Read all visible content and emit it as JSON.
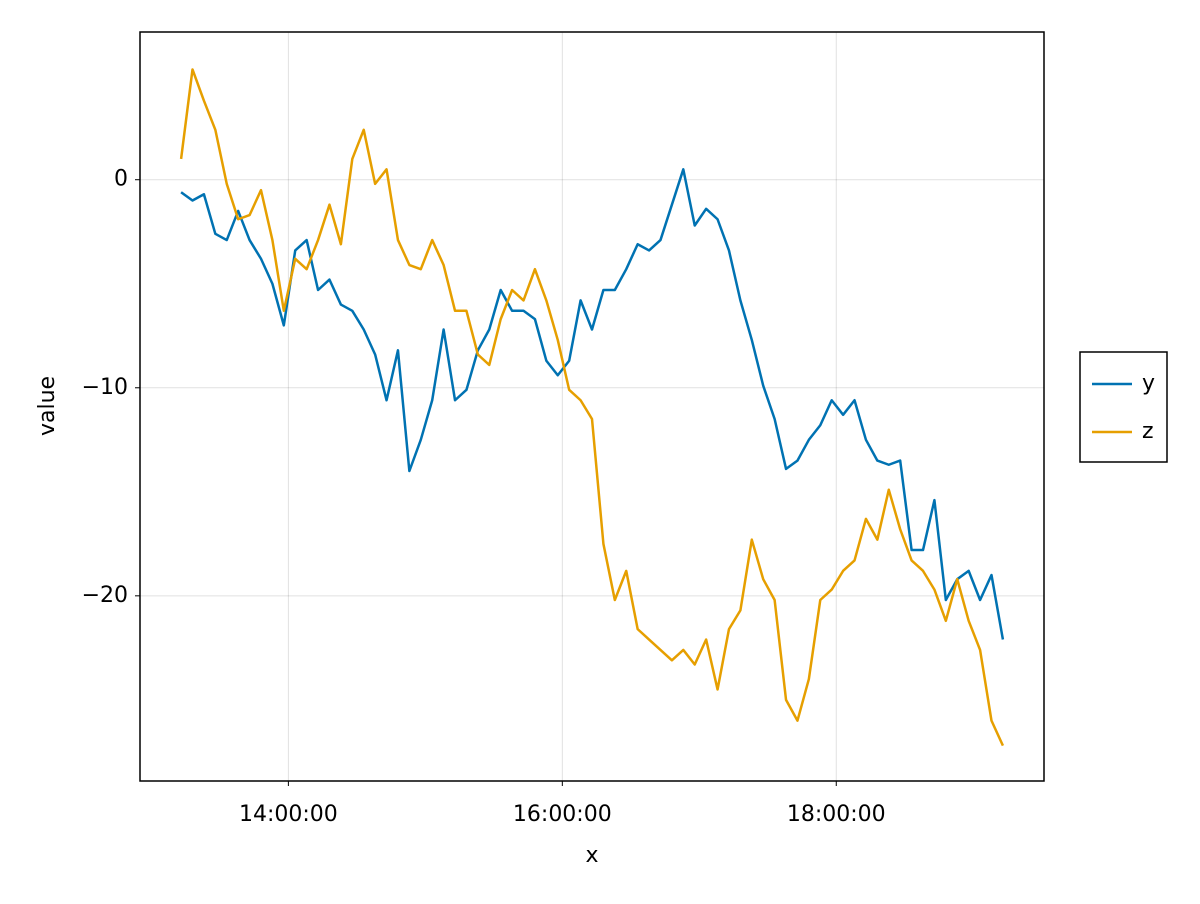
{
  "chart_data": {
    "type": "line",
    "x_label": "x",
    "y_label": "value",
    "x": [
      "13:13:00",
      "13:18:00",
      "13:23:00",
      "13:28:00",
      "13:33:00",
      "13:38:00",
      "13:43:00",
      "13:48:00",
      "13:53:00",
      "13:58:00",
      "14:03:00",
      "14:08:00",
      "14:13:00",
      "14:18:00",
      "14:23:00",
      "14:28:00",
      "14:33:00",
      "14:38:00",
      "14:43:00",
      "14:48:00",
      "14:53:00",
      "14:58:00",
      "15:03:00",
      "15:08:00",
      "15:13:00",
      "15:18:00",
      "15:23:00",
      "15:28:00",
      "15:33:00",
      "15:38:00",
      "15:43:00",
      "15:48:00",
      "15:53:00",
      "15:58:00",
      "16:03:00",
      "16:08:00",
      "16:13:00",
      "16:18:00",
      "16:23:00",
      "16:28:00",
      "16:33:00",
      "16:38:00",
      "16:43:00",
      "16:48:00",
      "16:53:00",
      "16:58:00",
      "17:03:00",
      "17:08:00",
      "17:13:00",
      "17:18:00",
      "17:23:00",
      "17:28:00",
      "17:33:00",
      "17:38:00",
      "17:43:00",
      "17:48:00",
      "17:53:00",
      "17:58:00",
      "18:03:00",
      "18:08:00",
      "18:13:00",
      "18:18:00",
      "18:23:00",
      "18:28:00",
      "18:33:00",
      "18:38:00",
      "18:43:00",
      "18:48:00",
      "18:53:00",
      "18:58:00",
      "19:03:00",
      "19:08:00",
      "19:13:00"
    ],
    "series": [
      {
        "name": "y",
        "color": "#0072b2",
        "values": [
          -0.6,
          -1,
          -0.7,
          -2.6,
          -2.9,
          -1.5,
          -2.9,
          -3.8,
          -5,
          -7,
          -3.4,
          -2.9,
          -5.3,
          -4.8,
          -6,
          -6.3,
          -7.2,
          -8.4,
          -10.6,
          -8.2,
          -14,
          -12.5,
          -10.6,
          -7.2,
          -10.6,
          -10.1,
          -8.2,
          -7.2,
          -5.3,
          -6.3,
          -6.3,
          -6.7,
          -8.7,
          -9.4,
          -8.7,
          -5.8,
          -7.2,
          -5.3,
          -5.3,
          -4.3,
          -3.1,
          -3.4,
          -2.9,
          -1.2,
          0.5,
          -2.2,
          -1.4,
          -1.9,
          -3.4,
          -5.8,
          -7.7,
          -9.9,
          -11.5,
          -13.9,
          -13.5,
          -12.5,
          -11.8,
          -10.6,
          -11.3,
          -10.6,
          -12.5,
          -13.5,
          -13.7,
          -13.5,
          -17.8,
          -17.8,
          -15.4,
          -20.2,
          -19.2,
          -18.8,
          -20.2,
          -19,
          -22.1
        ]
      },
      {
        "name": "z",
        "color": "#e69f00",
        "values": [
          1,
          5.3,
          3.8,
          2.4,
          -0.2,
          -1.9,
          -1.7,
          -0.5,
          -2.9,
          -6.3,
          -3.8,
          -4.3,
          -2.9,
          -1.2,
          -3.1,
          1,
          2.4,
          -0.2,
          0.5,
          -2.9,
          -4.1,
          -4.3,
          -2.9,
          -4.1,
          -6.3,
          -6.3,
          -8.4,
          -8.9,
          -6.7,
          -5.3,
          -5.8,
          -4.3,
          -5.8,
          -7.7,
          -10.1,
          -10.6,
          -11.5,
          -17.5,
          -20.2,
          -18.8,
          -21.6,
          -22.1,
          -22.6,
          -23.1,
          -22.6,
          -23.3,
          -22.1,
          -24.5,
          -21.6,
          -20.7,
          -17.3,
          -19.2,
          -20.2,
          -25,
          -26,
          -24,
          -20.2,
          -19.7,
          -18.8,
          -18.3,
          -16.3,
          -17.3,
          -14.9,
          -16.8,
          -18.3,
          -18.8,
          -19.7,
          -21.2,
          -19.2,
          -21.2,
          -22.6,
          -26,
          -27.2
        ]
      }
    ],
    "xlim": [
      "12:55:00",
      "19:31:00"
    ],
    "xticks": [
      "14:00:00",
      "16:00:00",
      "18:00:00"
    ],
    "ylim": [
      -28.9,
      7.1
    ],
    "yticks": [
      {
        "value": -20,
        "label": "−20"
      },
      {
        "value": -10,
        "label": "−10"
      },
      0
    ],
    "grid": true,
    "legend": "right"
  }
}
